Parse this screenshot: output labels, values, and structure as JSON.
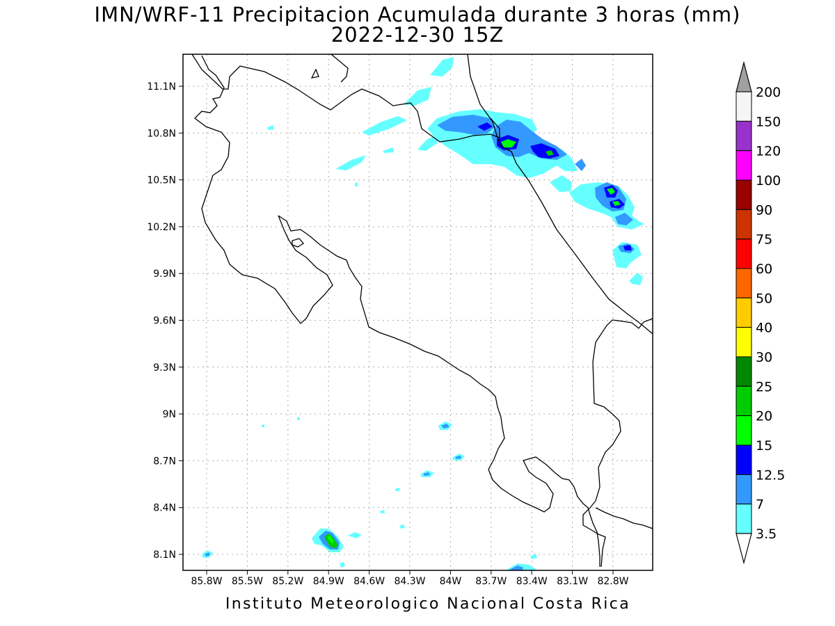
{
  "title_line1": "IMN/WRF-11 Precipitacion Acumulada durante 3 horas (mm)",
  "title_line2": "2022-12-30 15Z",
  "footer": "Instituto Meteorologico Nacional Costa Rica",
  "map": {
    "lon_ticks": [
      "85.8W",
      "85.5W",
      "85.2W",
      "84.9W",
      "84.6W",
      "84.3W",
      "84W",
      "83.7W",
      "83.4W",
      "83.1W",
      "82.8W"
    ],
    "lat_ticks": [
      "11.1N",
      "10.8N",
      "10.5N",
      "10.2N",
      "9.9N",
      "9.6N",
      "9.3N",
      "9N",
      "8.7N",
      "8.4N",
      "8.1N"
    ],
    "grid": "dotted"
  },
  "colorbar": {
    "labels": [
      "200",
      "150",
      "120",
      "100",
      "90",
      "75",
      "60",
      "50",
      "40",
      "30",
      "25",
      "20",
      "15",
      "12.5",
      "7",
      "3.5"
    ],
    "colors": [
      "#f5f5f5",
      "#9932cc",
      "#ff00ff",
      "#990000",
      "#cc3300",
      "#ff0000",
      "#ff6600",
      "#ffcc00",
      "#ffff00",
      "#008800",
      "#00cc00",
      "#00ff00",
      "#0000ff",
      "#3399ff",
      "#66ffff"
    ],
    "top_arrow_color": "#a0a0a0",
    "bottom_arrow_color": "#ffffff"
  }
}
